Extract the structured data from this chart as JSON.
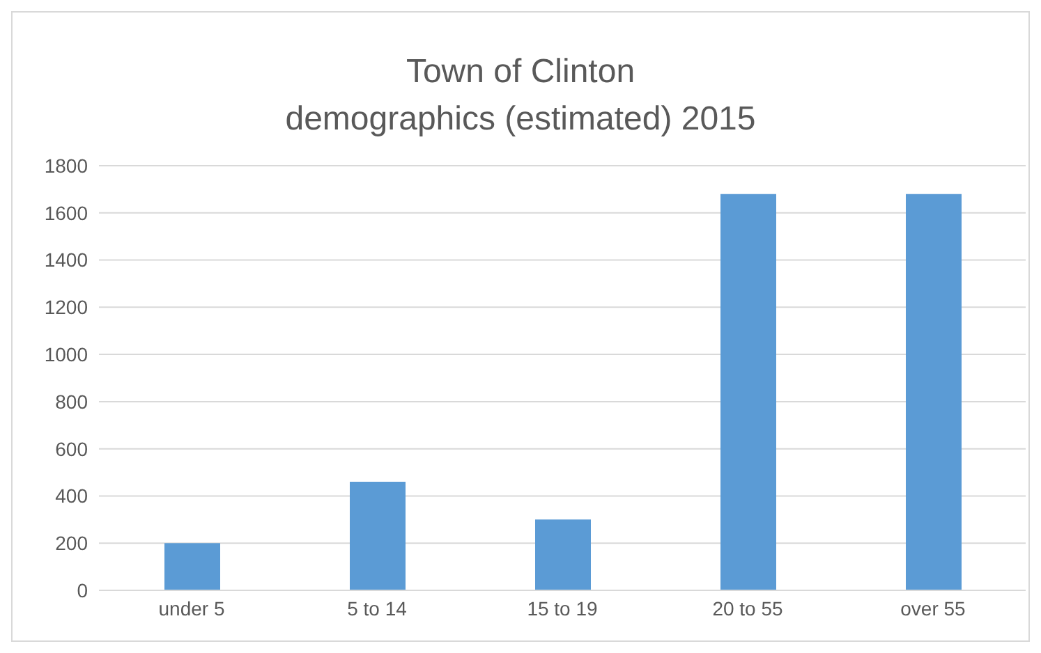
{
  "chart_data": {
    "type": "bar",
    "title": "Town of Clinton\ndemographics (estimated) 2015",
    "categories": [
      "under 5",
      "5 to 14",
      "15 to 19",
      "20 to 55",
      "over 55"
    ],
    "values": [
      200,
      460,
      300,
      1680,
      1680
    ],
    "color": "#5b9bd5",
    "ylim": [
      0,
      1800
    ],
    "yticks": [
      0,
      200,
      400,
      600,
      800,
      1000,
      1200,
      1400,
      1600,
      1800
    ],
    "grid": "y"
  }
}
